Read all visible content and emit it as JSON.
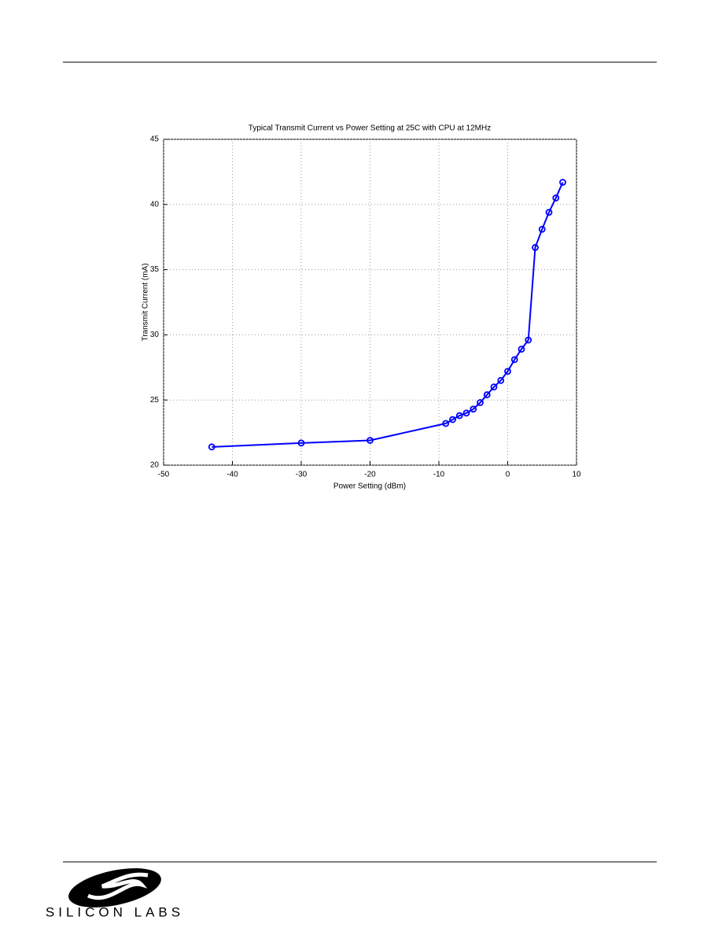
{
  "chart_data": {
    "type": "line",
    "title": "Typical Transmit Current vs Power Setting at 25C with CPU at 12MHz",
    "x_label": "Power Setting (dBm)",
    "y_label": "Transmit Current (mA)",
    "x": [
      -43,
      -30,
      -20,
      -9,
      -8,
      -7,
      -6,
      -5,
      -4,
      -3,
      -2,
      -1,
      0,
      1,
      2,
      3,
      4,
      5,
      6,
      7,
      8
    ],
    "series": [
      {
        "color": "#0000ff",
        "values": [
          21.4,
          21.7,
          21.9,
          23.2,
          23.5,
          23.8,
          24.0,
          24.3,
          24.8,
          25.4,
          26.0,
          26.5,
          27.2,
          28.1,
          28.9,
          29.6,
          36.7,
          38.1,
          39.4,
          40.5,
          41.7
        ]
      }
    ],
    "xlim": [
      -50,
      10
    ],
    "xticks": [
      -50,
      -40,
      -30,
      -20,
      -10,
      0,
      10
    ],
    "ylim": [
      20,
      45
    ],
    "yticks": [
      20,
      25,
      30,
      35,
      40,
      45
    ],
    "grid": true,
    "markers": true
  },
  "footer": {
    "logo_text": "SILICON LABS"
  }
}
